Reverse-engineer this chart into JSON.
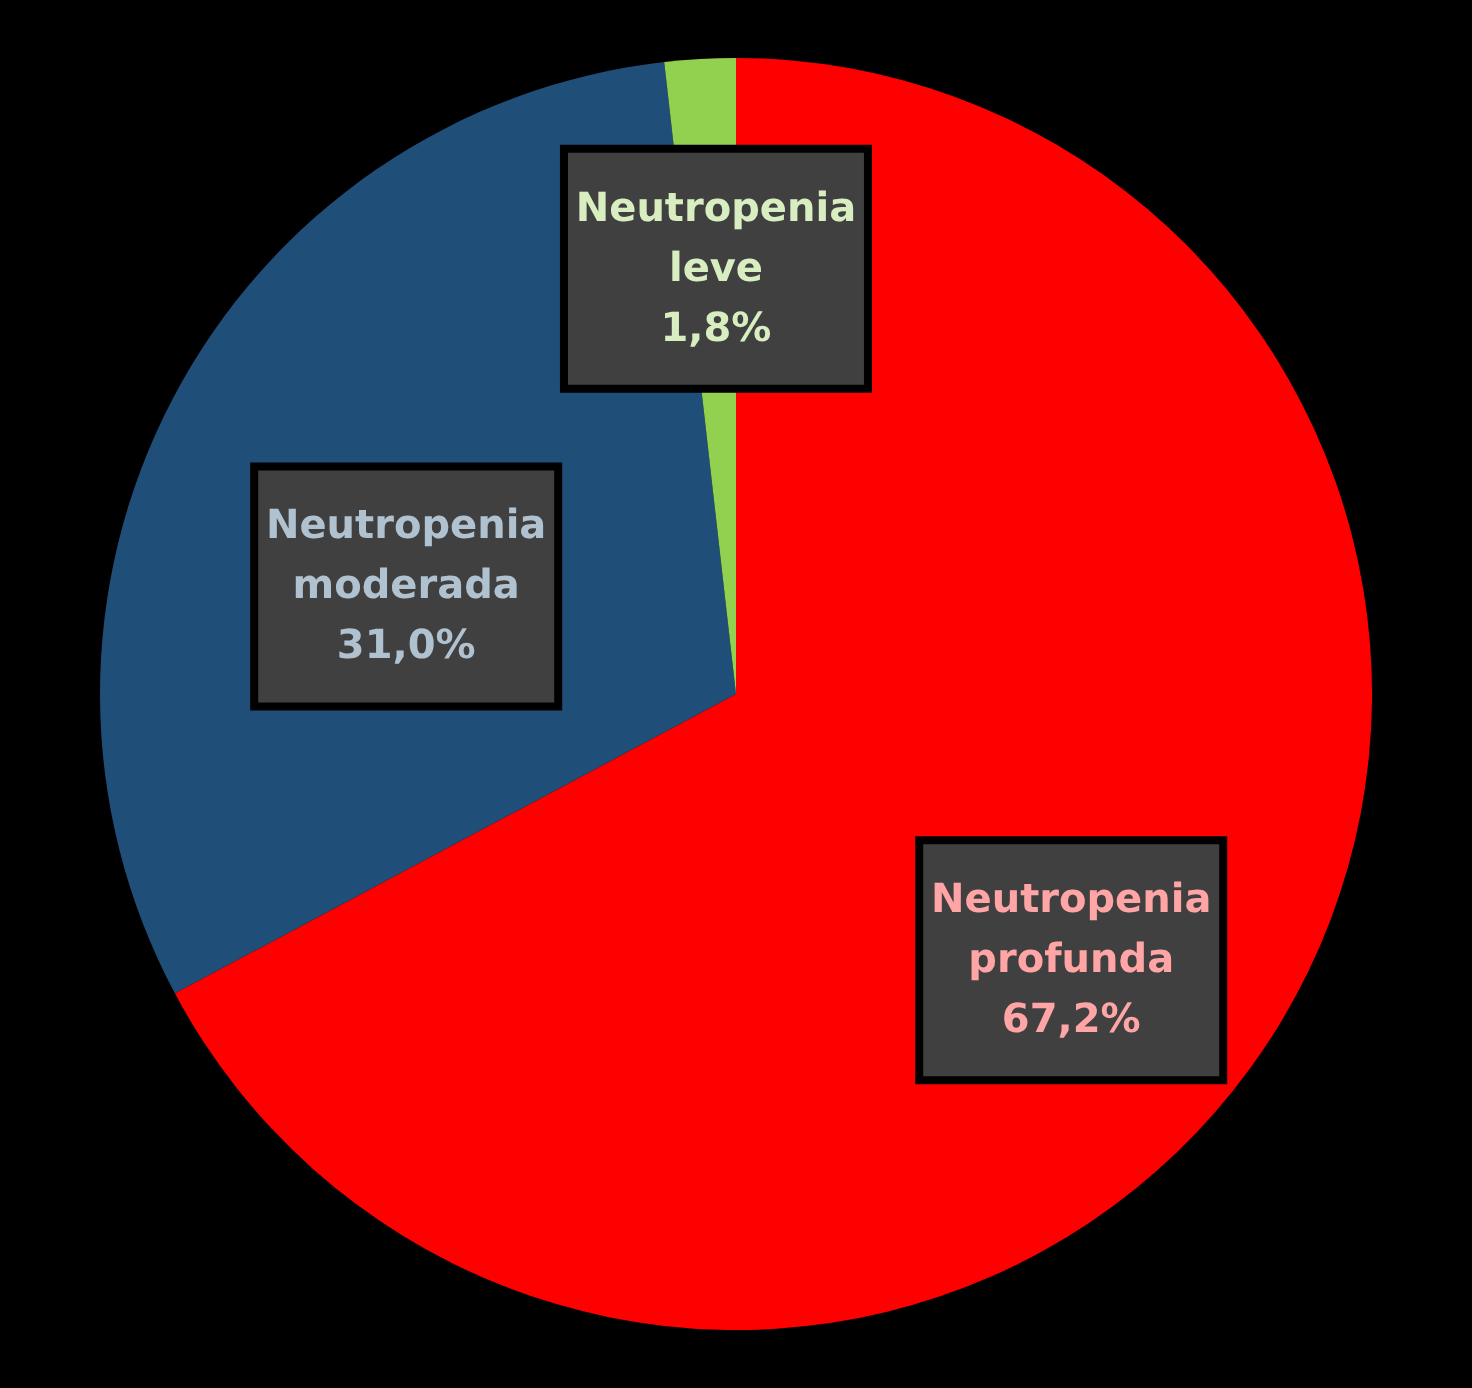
{
  "chart_data": {
    "type": "pie",
    "categories": [
      "Neutropenia profunda",
      "Neutropenia moderada",
      "Neutropenia leve"
    ],
    "values": [
      67.2,
      31.0,
      1.8
    ],
    "colors": [
      "#ff0000",
      "#1f4e79",
      "#92d050"
    ],
    "value_labels": [
      "67,2%",
      "31,0%",
      "1,8%"
    ]
  }
}
